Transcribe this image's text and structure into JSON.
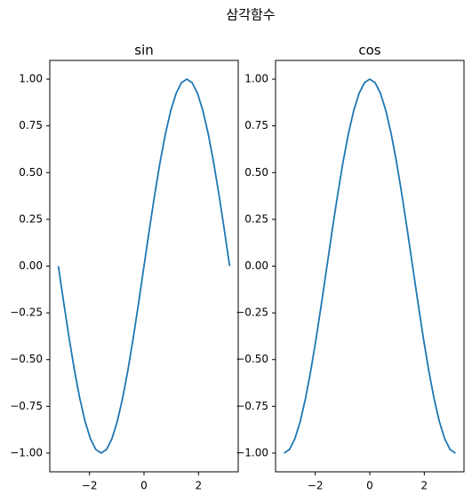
{
  "title": "삼각함수",
  "chart_data": [
    {
      "type": "line",
      "title": "sin",
      "x": [
        -3.1416,
        -2.9452,
        -2.7489,
        -2.5525,
        -2.3562,
        -2.1598,
        -1.9635,
        -1.7671,
        -1.5708,
        -1.3744,
        -1.1781,
        -0.9817,
        -0.7854,
        -0.589,
        -0.3927,
        -0.1963,
        0,
        0.1963,
        0.3927,
        0.589,
        0.7854,
        0.9817,
        1.1781,
        1.3744,
        1.5708,
        1.7671,
        1.9635,
        2.1598,
        2.3562,
        2.5525,
        2.7489,
        2.9452,
        3.1416
      ],
      "values": [
        0,
        -0.1951,
        -0.3827,
        -0.5556,
        -0.7071,
        -0.8315,
        -0.9239,
        -0.9808,
        -1,
        -0.9808,
        -0.9239,
        -0.8315,
        -0.7071,
        -0.5556,
        -0.3827,
        -0.1951,
        0,
        0.1951,
        0.3827,
        0.5556,
        0.7071,
        0.8315,
        0.9239,
        0.9808,
        1,
        0.9808,
        0.9239,
        0.8315,
        0.7071,
        0.5556,
        0.3827,
        0.1951,
        0
      ],
      "color": "#1f77b4",
      "xlim": [
        -3.456,
        3.456
      ],
      "ylim": [
        -1.1,
        1.1
      ],
      "xticks": [
        {
          "value": -2,
          "label": "−2"
        },
        0,
        2
      ],
      "yticks": [
        {
          "value": -1,
          "label": "−1.00"
        },
        {
          "value": -0.75,
          "label": "−0.75"
        },
        {
          "value": -0.5,
          "label": "−0.50"
        },
        {
          "value": -0.25,
          "label": "−0.25"
        },
        {
          "value": 0,
          "label": "0.00"
        },
        {
          "value": 0.25,
          "label": "0.25"
        },
        {
          "value": 0.5,
          "label": "0.50"
        },
        {
          "value": 0.75,
          "label": "0.75"
        },
        {
          "value": 1,
          "label": "1.00"
        }
      ]
    },
    {
      "type": "line",
      "title": "cos",
      "x": [
        -3.1416,
        -2.9452,
        -2.7489,
        -2.5525,
        -2.3562,
        -2.1598,
        -1.9635,
        -1.7671,
        -1.5708,
        -1.3744,
        -1.1781,
        -0.9817,
        -0.7854,
        -0.589,
        -0.3927,
        -0.1963,
        0,
        0.1963,
        0.3927,
        0.589,
        0.7854,
        0.9817,
        1.1781,
        1.3744,
        1.5708,
        1.7671,
        1.9635,
        2.1598,
        2.3562,
        2.5525,
        2.7489,
        2.9452,
        3.1416
      ],
      "values": [
        -1,
        -0.9808,
        -0.9239,
        -0.8315,
        -0.7071,
        -0.5556,
        -0.3827,
        -0.1951,
        0,
        0.1951,
        0.3827,
        0.5556,
        0.7071,
        0.8315,
        0.9239,
        0.9808,
        1,
        0.9808,
        0.9239,
        0.8315,
        0.7071,
        0.5556,
        0.3827,
        0.1951,
        0,
        -0.1951,
        -0.3827,
        -0.5556,
        -0.7071,
        -0.8315,
        -0.9239,
        -0.9808,
        -1
      ],
      "color": "#1f77b4",
      "xlim": [
        -3.456,
        3.456
      ],
      "ylim": [
        -1.1,
        1.1
      ],
      "xticks": [
        {
          "value": -2,
          "label": "−2"
        },
        0,
        2
      ],
      "yticks": [
        {
          "value": -1,
          "label": "−1.00"
        },
        {
          "value": -0.75,
          "label": "−0.75"
        },
        {
          "value": -0.5,
          "label": "−0.50"
        },
        {
          "value": -0.25,
          "label": "−0.25"
        },
        {
          "value": 0,
          "label": "0.00"
        },
        {
          "value": 0.25,
          "label": "0.25"
        },
        {
          "value": 0.5,
          "label": "0.50"
        },
        {
          "value": 0.75,
          "label": "0.75"
        },
        {
          "value": 1,
          "label": "1.00"
        }
      ]
    }
  ]
}
